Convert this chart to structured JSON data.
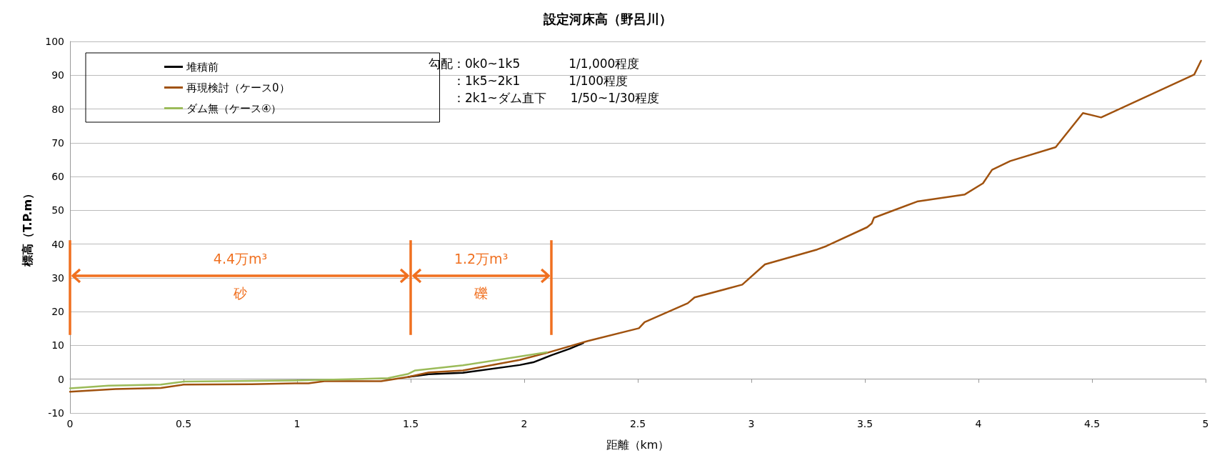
{
  "chart_data": {
    "type": "line",
    "title": "設定河床高（野呂川）",
    "xlabel": "距離（km）",
    "ylabel": "標高（T.P.m）",
    "xlim": [
      0,
      5
    ],
    "xticks": [
      0,
      0.5,
      1,
      1.5,
      2,
      2.5,
      3,
      3.5,
      4,
      4.5,
      5
    ],
    "ylim": [
      -10,
      100
    ],
    "yticks": [
      -10,
      0,
      10,
      20,
      30,
      40,
      50,
      60,
      70,
      80,
      90,
      100
    ],
    "grid": "y",
    "legend": "top left",
    "marker": "none",
    "line_style": "solid",
    "series": [
      {
        "name": "堆積前",
        "color": "#000000",
        "x": [
          1.49,
          1.58,
          1.73,
          1.98,
          2.04,
          2.12,
          2.2,
          2.26
        ],
        "values": [
          0.7,
          1.5,
          1.9,
          4.2,
          5.0,
          7.1,
          9.0,
          10.7
        ]
      },
      {
        "name": "再現検討（ケース0）",
        "color": "#a0520f",
        "x": [
          0,
          0.2,
          0.4,
          0.5,
          0.8,
          0.99,
          1.05,
          1.12,
          1.37,
          1.49,
          1.58,
          1.73,
          1.98,
          2.1,
          2.28,
          2.505,
          2.53,
          2.72,
          2.75,
          2.96,
          3.06,
          3.29,
          3.33,
          3.51,
          3.53,
          3.54,
          3.73,
          3.94,
          4.02,
          4.06,
          4.14,
          4.34,
          4.46,
          4.54,
          4.95,
          4.98
        ],
        "values": [
          -3.7,
          -2.9,
          -2.6,
          -1.6,
          -1.5,
          -1.2,
          -1.2,
          -0.6,
          -0.6,
          0.7,
          2.0,
          2.6,
          5.7,
          7.8,
          11.3,
          15.1,
          16.9,
          22.5,
          24.2,
          28,
          34,
          38.4,
          39.4,
          45,
          46.1,
          47.8,
          52.6,
          54.7,
          58,
          62,
          64.6,
          68.7,
          78.8,
          77.5,
          90.2,
          94.3
        ]
      },
      {
        "name": "ダム無（ケース④）",
        "color": "#9bbb59",
        "x": [
          0,
          0.17,
          0.4,
          0.5,
          0.99,
          1.4,
          1.49,
          1.52,
          1.73,
          2.1
        ],
        "values": [
          -2.7,
          -1.9,
          -1.6,
          -0.7,
          -0.4,
          0.3,
          1.6,
          2.6,
          4.1,
          8.0
        ]
      }
    ],
    "ref_lines": [
      {
        "axis": "x",
        "value": 0,
        "color": "#f07020"
      },
      {
        "axis": "x",
        "value": 1.5,
        "color": "#f07020"
      },
      {
        "axis": "x",
        "value": 2.12,
        "color": "#f07020"
      }
    ],
    "annotations": [
      "勾配：0k0~1k5　　　　1/1,000程度",
      "：1k5~2k1　　　　1/100程度",
      "：2k1~ダム直下　　1/50~1/30程度",
      "4.4万m³",
      "砂",
      "1.2万m³",
      "礫"
    ]
  }
}
